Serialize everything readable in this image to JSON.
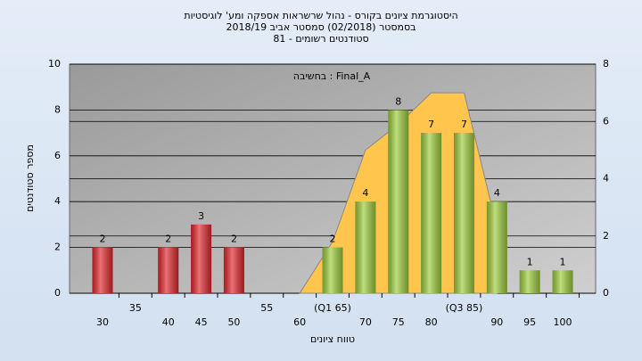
{
  "chart_data": {
    "type": "bar",
    "title": [
      "היסטוגרמת ציונים בקורס - נהול שרשראות אספקה ומע' לוגיסטיות",
      "בסמסטר  (02/2018)  סמסטר אביב 2018/19",
      "סטודנטים רשומים - 81"
    ],
    "annotation": "Final_A : בחשיבה",
    "ylabel": "מספר סטודנטים",
    "xlabel": "טווח ציונים",
    "categories": [
      "30",
      "35",
      "40",
      "45",
      "50",
      "55",
      "60",
      "(Q1 65)",
      "70",
      "75",
      "80",
      "(Q3 85)",
      "90",
      "95",
      "100"
    ],
    "series": [
      {
        "type": "bar",
        "values": [
          2,
          0,
          2,
          3,
          2,
          0,
          0,
          2,
          4,
          8,
          7,
          7,
          4,
          1,
          1
        ],
        "colors": [
          "#e0262b",
          "#e0262b",
          "#e0262b",
          "#e0262b",
          "#e0262b",
          "#e0262b",
          "#e0262b",
          "#9ccc3c",
          "#9ccc3c",
          "#9ccc3c",
          "#9ccc3c",
          "#9ccc3c",
          "#9ccc3c",
          "#9ccc3c",
          "#9ccc3c"
        ]
      },
      {
        "type": "area",
        "axis": "y2",
        "color": "#ffc54d",
        "values": [
          null,
          null,
          null,
          null,
          null,
          null,
          0,
          1.8,
          5,
          5.9,
          7,
          7,
          2.3,
          null,
          null
        ]
      }
    ],
    "ylim": [
      0,
      10
    ],
    "yticks": [
      0,
      2,
      4,
      6,
      8,
      10
    ],
    "y2lim": [
      0,
      8
    ],
    "y2ticks": [
      0,
      2,
      4,
      6,
      8
    ],
    "grid": true
  }
}
